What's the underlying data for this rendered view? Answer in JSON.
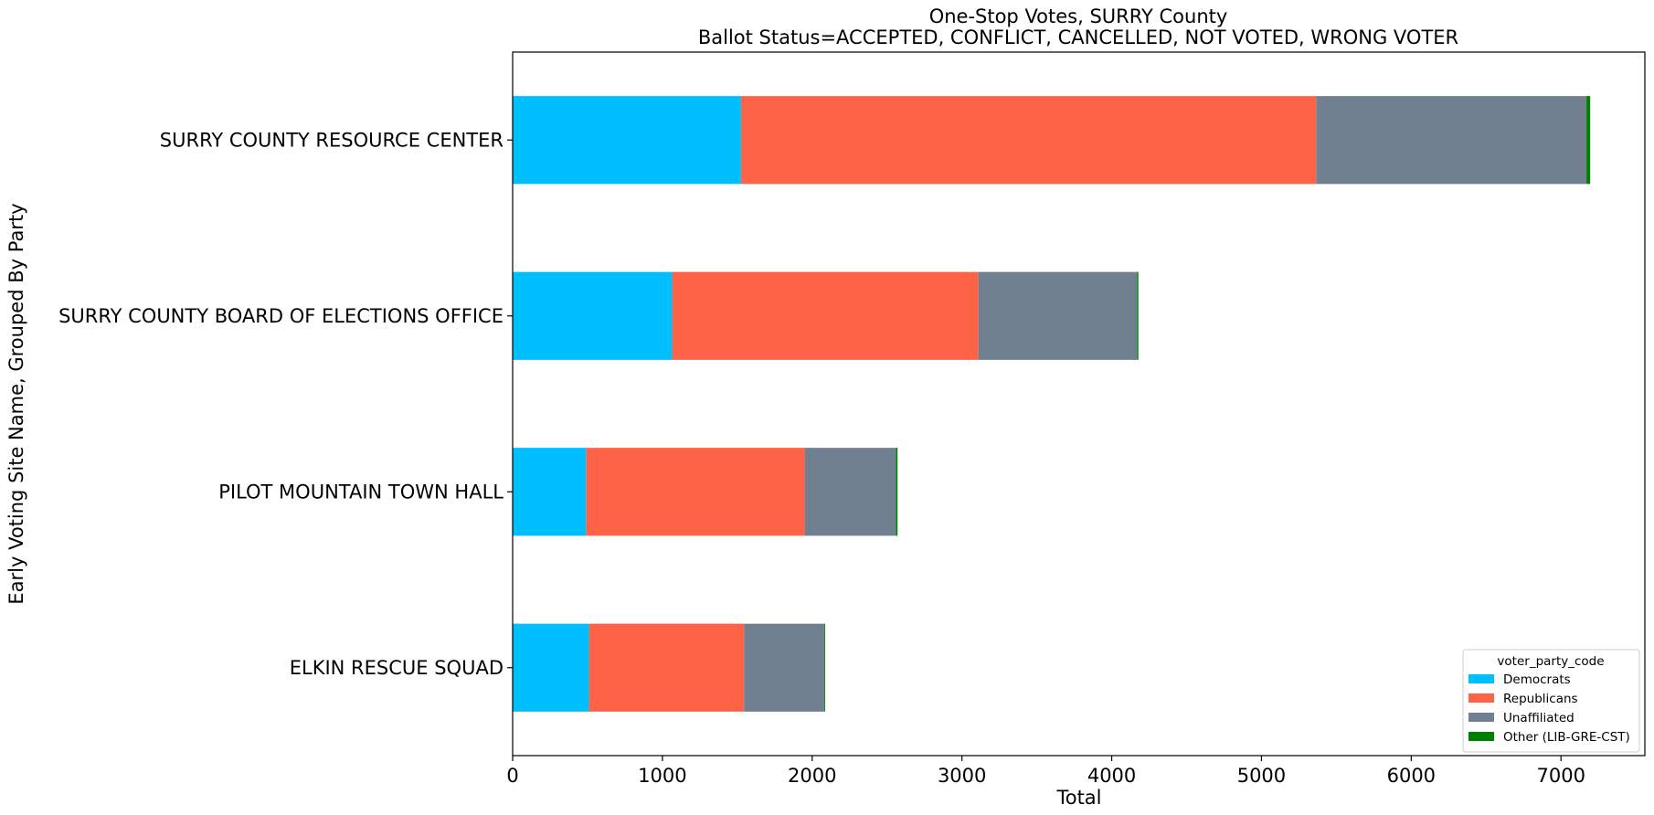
{
  "chart_data": {
    "type": "bar",
    "orientation": "horizontal",
    "stacked": true,
    "title": "One-Stop Votes, SURRY County",
    "subtitle": "Ballot Status=ACCEPTED, CONFLICT, CANCELLED, NOT VOTED, WRONG VOTER",
    "xlabel": "Total",
    "ylabel": "Early Voting Site Name, Grouped By Party",
    "xlim": [
      0,
      7560
    ],
    "xticks": [
      0,
      1000,
      2000,
      3000,
      4000,
      5000,
      6000,
      7000
    ],
    "grid": false,
    "categories": [
      "SURRY COUNTY RESOURCE CENTER",
      "SURRY COUNTY BOARD OF ELECTIONS OFFICE",
      "PILOT MOUNTAIN TOWN HALL",
      "ELKIN RESCUE SQUAD"
    ],
    "series": [
      {
        "name": "Democrats",
        "color": "#00bfff",
        "values": [
          1525,
          1065,
          490,
          510
        ]
      },
      {
        "name": "Republicans",
        "color": "#ff6347",
        "values": [
          3840,
          2045,
          1460,
          1035
        ]
      },
      {
        "name": "Unaffiliated",
        "color": "#708090",
        "values": [
          1805,
          1060,
          610,
          535
        ]
      },
      {
        "name": "Other (LIB-GRE-CST)",
        "color": "#008000",
        "values": [
          25,
          8,
          10,
          5
        ]
      }
    ],
    "legend": {
      "title": "voter_party_code",
      "placement": "lower-right"
    }
  }
}
